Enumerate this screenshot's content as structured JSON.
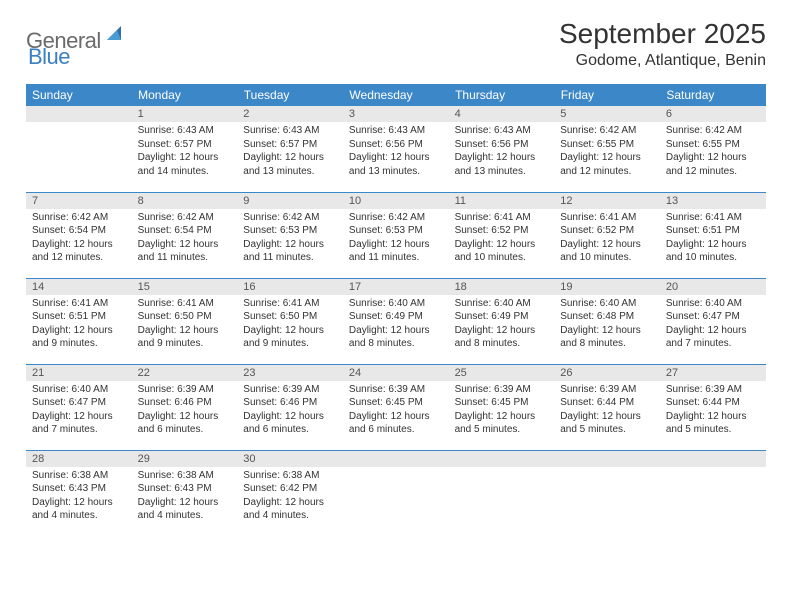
{
  "logo": {
    "general": "General",
    "blue": "Blue"
  },
  "title": "September 2025",
  "location": "Godome, Atlantique, Benin",
  "header_color": "#3b87c8",
  "daynum_bg": "#e8e8e8",
  "weekdays": [
    "Sunday",
    "Monday",
    "Tuesday",
    "Wednesday",
    "Thursday",
    "Friday",
    "Saturday"
  ],
  "weeks": [
    [
      {
        "n": "",
        "lines": []
      },
      {
        "n": "1",
        "lines": [
          "Sunrise: 6:43 AM",
          "Sunset: 6:57 PM",
          "Daylight: 12 hours",
          "and 14 minutes."
        ]
      },
      {
        "n": "2",
        "lines": [
          "Sunrise: 6:43 AM",
          "Sunset: 6:57 PM",
          "Daylight: 12 hours",
          "and 13 minutes."
        ]
      },
      {
        "n": "3",
        "lines": [
          "Sunrise: 6:43 AM",
          "Sunset: 6:56 PM",
          "Daylight: 12 hours",
          "and 13 minutes."
        ]
      },
      {
        "n": "4",
        "lines": [
          "Sunrise: 6:43 AM",
          "Sunset: 6:56 PM",
          "Daylight: 12 hours",
          "and 13 minutes."
        ]
      },
      {
        "n": "5",
        "lines": [
          "Sunrise: 6:42 AM",
          "Sunset: 6:55 PM",
          "Daylight: 12 hours",
          "and 12 minutes."
        ]
      },
      {
        "n": "6",
        "lines": [
          "Sunrise: 6:42 AM",
          "Sunset: 6:55 PM",
          "Daylight: 12 hours",
          "and 12 minutes."
        ]
      }
    ],
    [
      {
        "n": "7",
        "lines": [
          "Sunrise: 6:42 AM",
          "Sunset: 6:54 PM",
          "Daylight: 12 hours",
          "and 12 minutes."
        ]
      },
      {
        "n": "8",
        "lines": [
          "Sunrise: 6:42 AM",
          "Sunset: 6:54 PM",
          "Daylight: 12 hours",
          "and 11 minutes."
        ]
      },
      {
        "n": "9",
        "lines": [
          "Sunrise: 6:42 AM",
          "Sunset: 6:53 PM",
          "Daylight: 12 hours",
          "and 11 minutes."
        ]
      },
      {
        "n": "10",
        "lines": [
          "Sunrise: 6:42 AM",
          "Sunset: 6:53 PM",
          "Daylight: 12 hours",
          "and 11 minutes."
        ]
      },
      {
        "n": "11",
        "lines": [
          "Sunrise: 6:41 AM",
          "Sunset: 6:52 PM",
          "Daylight: 12 hours",
          "and 10 minutes."
        ]
      },
      {
        "n": "12",
        "lines": [
          "Sunrise: 6:41 AM",
          "Sunset: 6:52 PM",
          "Daylight: 12 hours",
          "and 10 minutes."
        ]
      },
      {
        "n": "13",
        "lines": [
          "Sunrise: 6:41 AM",
          "Sunset: 6:51 PM",
          "Daylight: 12 hours",
          "and 10 minutes."
        ]
      }
    ],
    [
      {
        "n": "14",
        "lines": [
          "Sunrise: 6:41 AM",
          "Sunset: 6:51 PM",
          "Daylight: 12 hours",
          "and 9 minutes."
        ]
      },
      {
        "n": "15",
        "lines": [
          "Sunrise: 6:41 AM",
          "Sunset: 6:50 PM",
          "Daylight: 12 hours",
          "and 9 minutes."
        ]
      },
      {
        "n": "16",
        "lines": [
          "Sunrise: 6:41 AM",
          "Sunset: 6:50 PM",
          "Daylight: 12 hours",
          "and 9 minutes."
        ]
      },
      {
        "n": "17",
        "lines": [
          "Sunrise: 6:40 AM",
          "Sunset: 6:49 PM",
          "Daylight: 12 hours",
          "and 8 minutes."
        ]
      },
      {
        "n": "18",
        "lines": [
          "Sunrise: 6:40 AM",
          "Sunset: 6:49 PM",
          "Daylight: 12 hours",
          "and 8 minutes."
        ]
      },
      {
        "n": "19",
        "lines": [
          "Sunrise: 6:40 AM",
          "Sunset: 6:48 PM",
          "Daylight: 12 hours",
          "and 8 minutes."
        ]
      },
      {
        "n": "20",
        "lines": [
          "Sunrise: 6:40 AM",
          "Sunset: 6:47 PM",
          "Daylight: 12 hours",
          "and 7 minutes."
        ]
      }
    ],
    [
      {
        "n": "21",
        "lines": [
          "Sunrise: 6:40 AM",
          "Sunset: 6:47 PM",
          "Daylight: 12 hours",
          "and 7 minutes."
        ]
      },
      {
        "n": "22",
        "lines": [
          "Sunrise: 6:39 AM",
          "Sunset: 6:46 PM",
          "Daylight: 12 hours",
          "and 6 minutes."
        ]
      },
      {
        "n": "23",
        "lines": [
          "Sunrise: 6:39 AM",
          "Sunset: 6:46 PM",
          "Daylight: 12 hours",
          "and 6 minutes."
        ]
      },
      {
        "n": "24",
        "lines": [
          "Sunrise: 6:39 AM",
          "Sunset: 6:45 PM",
          "Daylight: 12 hours",
          "and 6 minutes."
        ]
      },
      {
        "n": "25",
        "lines": [
          "Sunrise: 6:39 AM",
          "Sunset: 6:45 PM",
          "Daylight: 12 hours",
          "and 5 minutes."
        ]
      },
      {
        "n": "26",
        "lines": [
          "Sunrise: 6:39 AM",
          "Sunset: 6:44 PM",
          "Daylight: 12 hours",
          "and 5 minutes."
        ]
      },
      {
        "n": "27",
        "lines": [
          "Sunrise: 6:39 AM",
          "Sunset: 6:44 PM",
          "Daylight: 12 hours",
          "and 5 minutes."
        ]
      }
    ],
    [
      {
        "n": "28",
        "lines": [
          "Sunrise: 6:38 AM",
          "Sunset: 6:43 PM",
          "Daylight: 12 hours",
          "and 4 minutes."
        ]
      },
      {
        "n": "29",
        "lines": [
          "Sunrise: 6:38 AM",
          "Sunset: 6:43 PM",
          "Daylight: 12 hours",
          "and 4 minutes."
        ]
      },
      {
        "n": "30",
        "lines": [
          "Sunrise: 6:38 AM",
          "Sunset: 6:42 PM",
          "Daylight: 12 hours",
          "and 4 minutes."
        ]
      },
      {
        "n": "",
        "lines": []
      },
      {
        "n": "",
        "lines": []
      },
      {
        "n": "",
        "lines": []
      },
      {
        "n": "",
        "lines": []
      }
    ]
  ]
}
